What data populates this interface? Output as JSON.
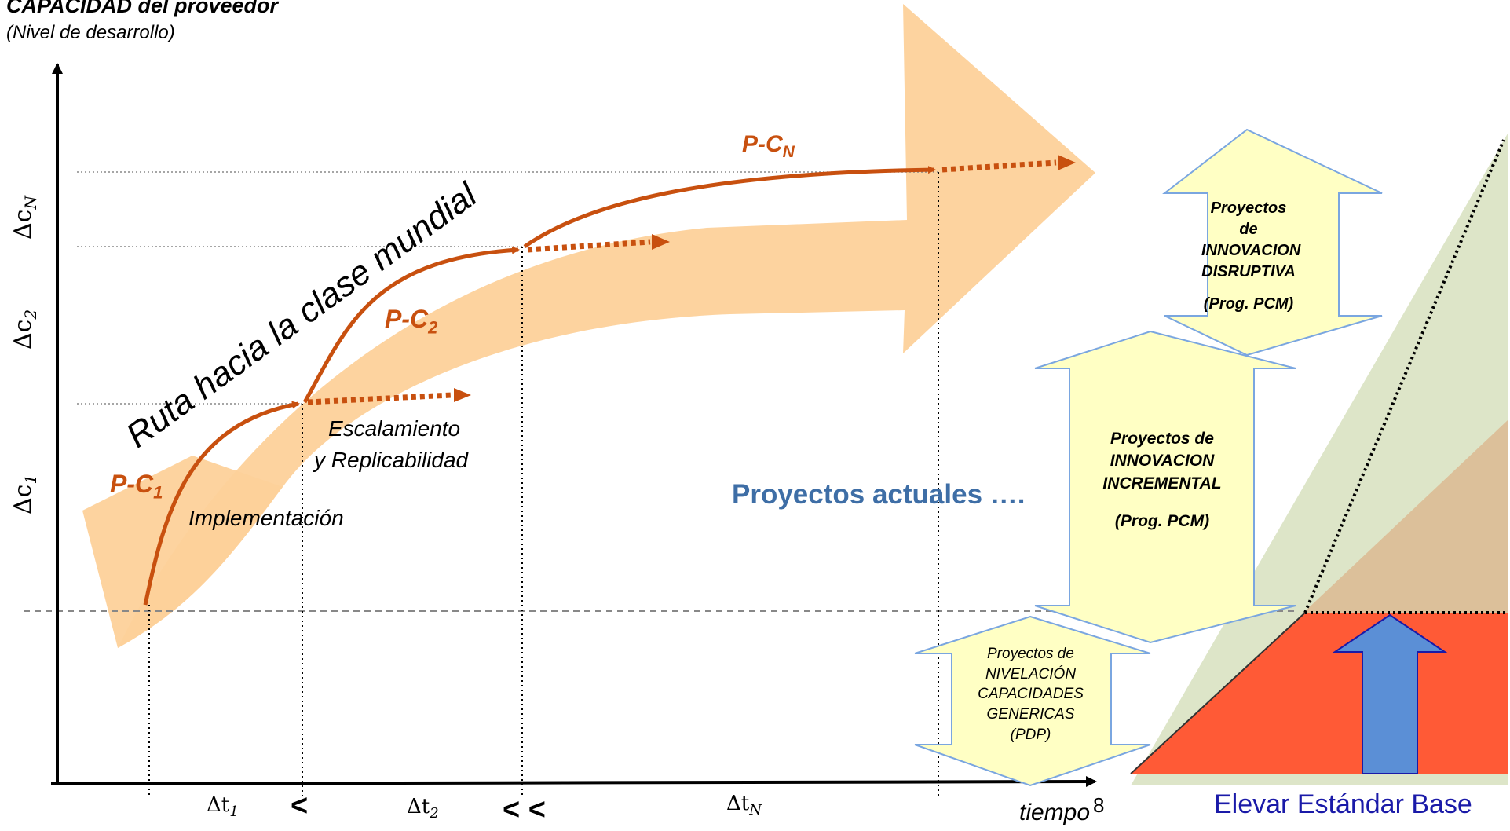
{
  "header": {
    "title": "CAPACIDAD del proveedor",
    "subtitle": "(Nivel de desarrollo)"
  },
  "route_label": "Ruta hacia la clase mundial",
  "y_axis": {
    "c1": "Δc",
    "c1_sub": "1",
    "c2": "Δc",
    "c2_sub": "2",
    "cN": "Δc",
    "cN_sub": "N"
  },
  "stages": {
    "pc1": "P-C",
    "pc1_sub": "1",
    "pc2": "P-C",
    "pc2_sub": "2",
    "pcN": "P-C",
    "pcN_sub": "N",
    "implementacion": "Implementación",
    "escalamiento_line1": "Escalamiento",
    "escalamiento_line2": "y Replicabilidad"
  },
  "x_axis": {
    "t1": "Δt",
    "t1_sub": "1",
    "lt1": "<",
    "t2": "Δt",
    "t2_sub": "2",
    "lt2": "< <",
    "tN": "Δt",
    "tN_sub": "N",
    "label": "tiempo",
    "page_number": "8"
  },
  "current_projects": "Proyectos actuales ….",
  "boxes": {
    "disruptiva": [
      "Proyectos de",
      "INNOVACION",
      "DISRUPTIVA",
      "",
      "(Prog. PCM)"
    ],
    "incremental": [
      "Proyectos de",
      "INNOVACION",
      "INCREMENTAL",
      "",
      "(Prog. PCM)"
    ],
    "nivelacion": [
      "Proyectos de",
      "NIVELACIÓN",
      "CAPACIDADES",
      "GENERICAS",
      "(PDP)"
    ]
  },
  "base_label": "Elevar Estándar Base",
  "colors": {
    "band": "#fdd19a",
    "curve": "#c8500f",
    "box_fill": "#ffffc4",
    "box_stroke": "#7aa6e0",
    "blue_text": "#3e6ea6",
    "navy_text": "#1a1aa8",
    "red_base": "#ff5a36",
    "tan": "#dcc09a",
    "green": "#dde5c8",
    "up_arrow": "#5b8fd6"
  }
}
